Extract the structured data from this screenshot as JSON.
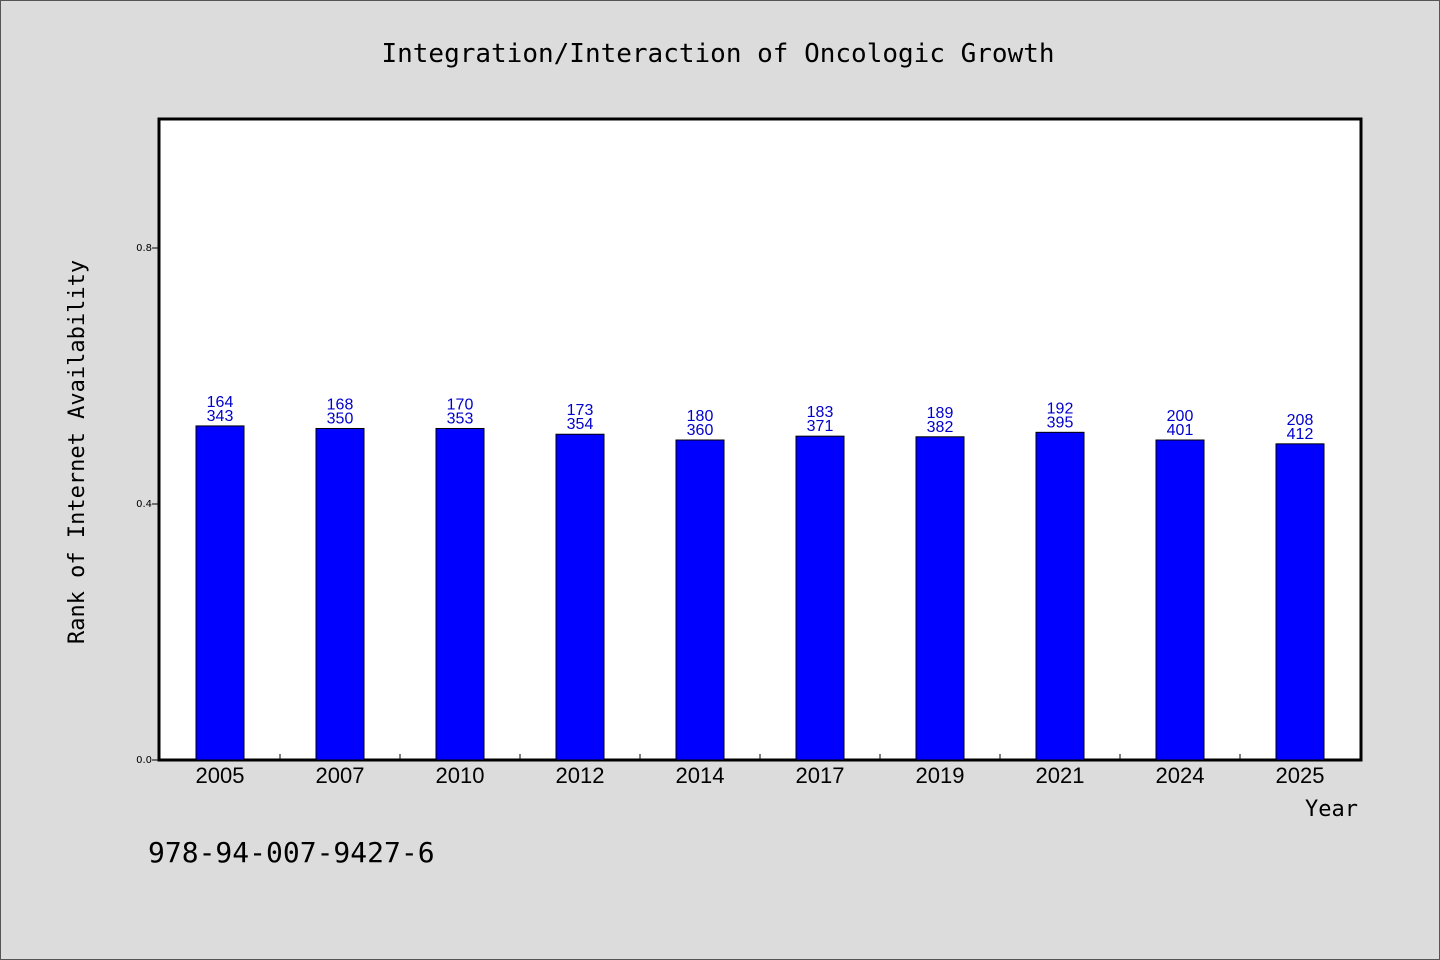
{
  "chart_data": {
    "type": "bar",
    "title": "Integration/Interaction of Oncologic Growth",
    "xlabel": "Year",
    "ylabel": "Rank of Internet Availability",
    "categories": [
      "2005",
      "2007",
      "2010",
      "2012",
      "2014",
      "2017",
      "2019",
      "2021",
      "2024",
      "2025"
    ],
    "values": [
      0.522,
      0.518,
      0.518,
      0.509,
      0.5,
      0.506,
      0.505,
      0.512,
      0.5,
      0.494
    ],
    "label_top": [
      "164",
      "168",
      "170",
      "173",
      "180",
      "183",
      "189",
      "192",
      "200",
      "208"
    ],
    "label_bottom": [
      "343",
      "350",
      "353",
      "354",
      "360",
      "371",
      "382",
      "395",
      "401",
      "412"
    ],
    "ylim": [
      0,
      1.0
    ],
    "yticks": [
      "0.0",
      "0.4",
      "0.8"
    ],
    "grid": false,
    "bar_color": "#0000ff",
    "label_color": "#0000cc"
  },
  "footer": {
    "isbn": "978-94-007-9427-6"
  }
}
